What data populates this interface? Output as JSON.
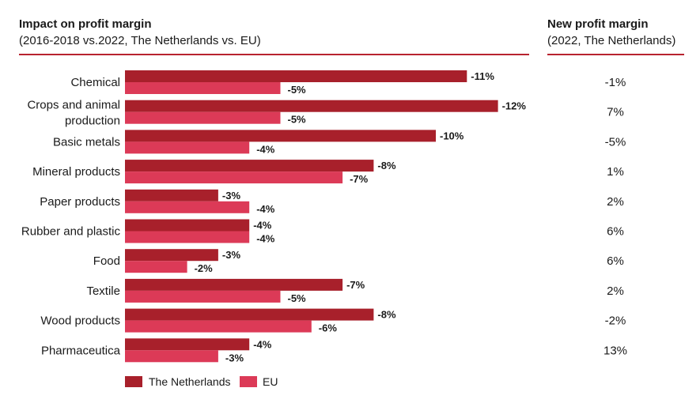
{
  "header": {
    "left_title": "Impact on profit margin",
    "left_subtitle": "(2016-2018 vs.2022, The Netherlands vs. EU)",
    "right_title": "New profit margin",
    "right_subtitle": "(2022, The Netherlands)"
  },
  "colors": {
    "netherlands": "#a8202b",
    "eu": "#dc3a57",
    "rule": "#b8232f"
  },
  "chart_data": {
    "type": "bar",
    "orientation": "horizontal",
    "categories": [
      [
        "Chemical"
      ],
      [
        "Crops and animal",
        "production"
      ],
      [
        "Basic metals"
      ],
      [
        "Mineral products"
      ],
      [
        "Paper products"
      ],
      [
        "Rubber and plastic"
      ],
      [
        "Food"
      ],
      [
        "Textile"
      ],
      [
        "Wood products"
      ],
      [
        "Pharmaceutica"
      ]
    ],
    "series": [
      {
        "name": "The Netherlands",
        "values": [
          -11,
          -12,
          -10,
          -8,
          -3,
          -4,
          -3,
          -7,
          -8,
          -4
        ],
        "labels": [
          "-11%",
          "-12%",
          "-10%",
          "-8%",
          "-3%",
          "-4%",
          "-3%",
          "-7%",
          "-8%",
          "-4%"
        ]
      },
      {
        "name": "EU",
        "values": [
          -5,
          -5,
          -4,
          -7,
          -4,
          -4,
          -2,
          -5,
          -6,
          -3
        ],
        "labels": [
          "-5%",
          "-5%",
          "-4%",
          "-7%",
          "-4%",
          "-4%",
          "-2%",
          "-5%",
          "-6%",
          "-3%"
        ]
      }
    ],
    "new_profit_margin": [
      "-1%",
      "7%",
      "-5%",
      "1%",
      "2%",
      "6%",
      "6%",
      "2%",
      "-2%",
      "13%"
    ],
    "value_format": "percent",
    "legend_position": "bottom-left",
    "grid": false
  }
}
